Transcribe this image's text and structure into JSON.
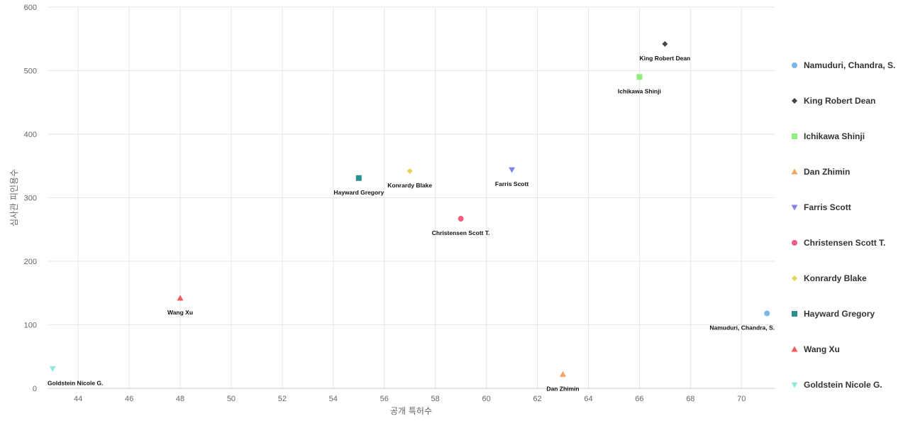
{
  "chart_data": {
    "type": "scatter",
    "title": "",
    "xlabel": "공개 특허수",
    "ylabel": "심사관 피인용수",
    "xlim": [
      42.8,
      71.3
    ],
    "ylim": [
      0,
      600
    ],
    "xticks": [
      44,
      46,
      48,
      50,
      52,
      54,
      56,
      58,
      60,
      62,
      64,
      66,
      68,
      70
    ],
    "yticks": [
      0,
      100,
      200,
      300,
      400,
      500,
      600
    ],
    "grid": true,
    "legend_position": "right",
    "series": [
      {
        "name": "Namuduri, Chandra, S.",
        "x": 71,
        "y": 118,
        "color": "#7cb5ec",
        "marker": "circle"
      },
      {
        "name": "King Robert Dean",
        "x": 67,
        "y": 542,
        "color": "#434348",
        "marker": "diamond"
      },
      {
        "name": "Ichikawa Shinji",
        "x": 66,
        "y": 490,
        "color": "#90ed7d",
        "marker": "square"
      },
      {
        "name": "Dan Zhimin",
        "x": 63,
        "y": 22,
        "color": "#f7a35c",
        "marker": "triangle"
      },
      {
        "name": "Farris Scott",
        "x": 61,
        "y": 344,
        "color": "#8085e9",
        "marker": "triangle-down"
      },
      {
        "name": "Christensen Scott T.",
        "x": 59,
        "y": 267,
        "color": "#f15c80",
        "marker": "circle"
      },
      {
        "name": "Konrardy Blake",
        "x": 57,
        "y": 342,
        "color": "#e4d354",
        "marker": "diamond"
      },
      {
        "name": "Hayward Gregory",
        "x": 55,
        "y": 331,
        "color": "#2b908f",
        "marker": "square"
      },
      {
        "name": "Wang Xu",
        "x": 48,
        "y": 142,
        "color": "#f45b5b",
        "marker": "triangle"
      },
      {
        "name": "Goldstein Nicole G.",
        "x": 43,
        "y": 31,
        "color": "#91e8e1",
        "marker": "triangle-down"
      }
    ]
  }
}
